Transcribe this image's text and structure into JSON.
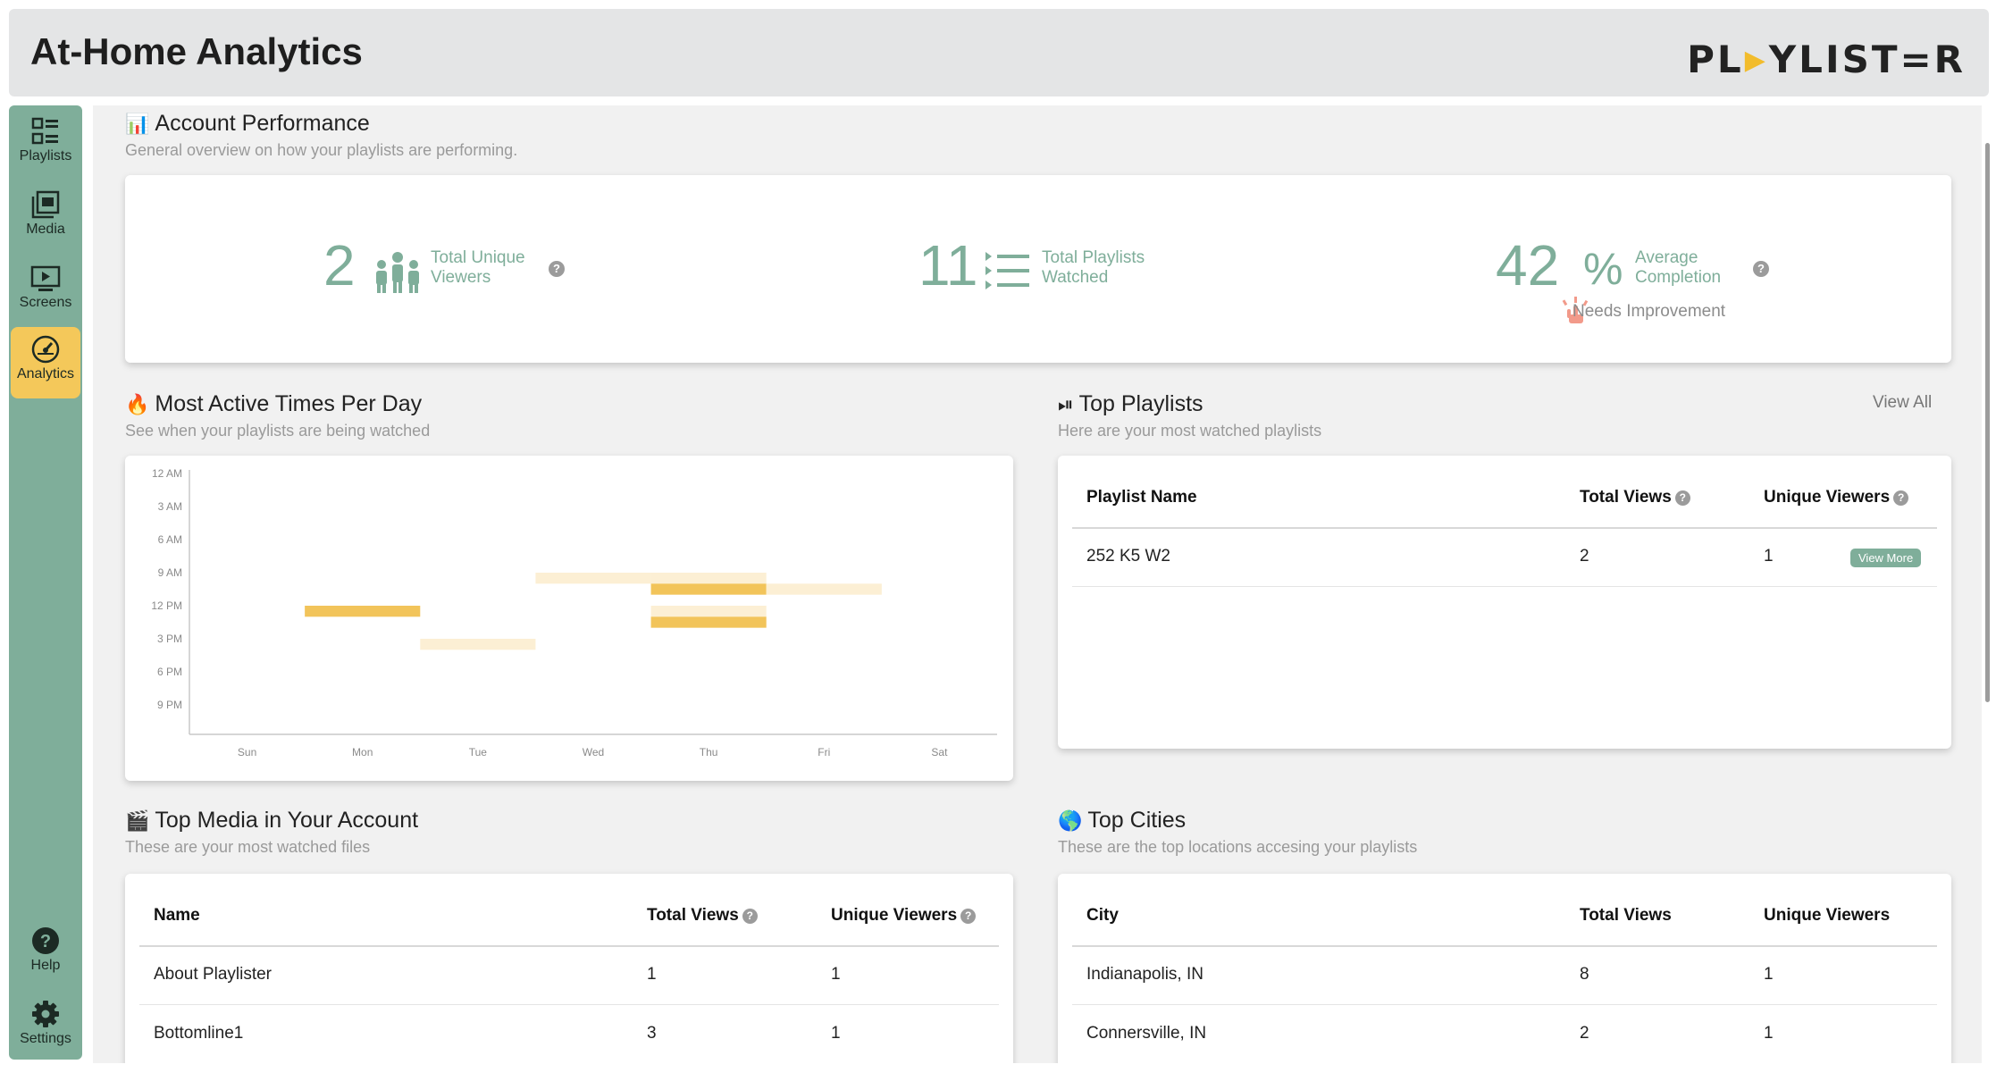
{
  "header": {
    "title": "At-Home Analytics",
    "logo_prefix": "PL",
    "logo_suffix": "YLIST=R"
  },
  "sidebar": {
    "items": [
      {
        "label": "Playlists",
        "icon": "playlists-icon"
      },
      {
        "label": "Media",
        "icon": "media-icon"
      },
      {
        "label": "Screens",
        "icon": "screens-icon"
      },
      {
        "label": "Analytics",
        "icon": "analytics-gauge-icon",
        "active": true
      },
      {
        "label": "Help",
        "icon": "help-icon"
      },
      {
        "label": "Settings",
        "icon": "gear-icon"
      }
    ]
  },
  "performance": {
    "title": "Account Performance",
    "subtitle": "General overview on how your playlists are performing.",
    "unique_viewers": {
      "value": "2",
      "label_1": "Total Unique",
      "label_2": "Viewers"
    },
    "playlists_watched": {
      "value": "11",
      "label_1": "Total Playlists",
      "label_2": "Watched"
    },
    "avg_completion": {
      "value": "42",
      "unit": "%",
      "label_1": "Average",
      "label_2": "Completion",
      "status": "Needs Improvement"
    }
  },
  "active_times": {
    "title": "Most Active Times Per Day",
    "subtitle": "See when your playlists are being watched"
  },
  "chart_data": {
    "type": "heatmap",
    "title": "",
    "categories": [
      "Sun",
      "Mon",
      "Tue",
      "Wed",
      "Thu",
      "Fri",
      "Sat"
    ],
    "y_ticks": [
      "12 AM",
      "3 AM",
      "6 AM",
      "9 AM",
      "12 PM",
      "3 PM",
      "6 PM",
      "9 PM"
    ],
    "cells": [
      {
        "day": "Mon",
        "hour": 12,
        "intensity": 1.0
      },
      {
        "day": "Tue",
        "hour": 15,
        "intensity": 0.3
      },
      {
        "day": "Wed",
        "hour": 9,
        "intensity": 0.3
      },
      {
        "day": "Thu",
        "hour": 9,
        "intensity": 0.3
      },
      {
        "day": "Thu",
        "hour": 10,
        "intensity": 1.0
      },
      {
        "day": "Thu",
        "hour": 12,
        "intensity": 0.3
      },
      {
        "day": "Thu",
        "hour": 13,
        "intensity": 1.0
      },
      {
        "day": "Fri",
        "hour": 10,
        "intensity": 0.3
      }
    ]
  },
  "top_playlists": {
    "title": "Top Playlists",
    "subtitle": "Here are your most watched playlists",
    "view_all": "View All",
    "columns": [
      "Playlist Name",
      "Total Views",
      "Unique Viewers"
    ],
    "rows": [
      {
        "name": "252 K5 W2",
        "views": "2",
        "viewers": "1",
        "action": "View More"
      }
    ]
  },
  "top_media": {
    "title": "Top Media in Your Account",
    "subtitle": "These are your most watched files",
    "columns": [
      "Name",
      "Total Views",
      "Unique Viewers"
    ],
    "rows": [
      {
        "name": "About Playlister",
        "views": "1",
        "viewers": "1"
      },
      {
        "name": "Bottomline1",
        "views": "3",
        "viewers": "1"
      }
    ]
  },
  "top_cities": {
    "title": "Top Cities",
    "subtitle": "These are the top locations accesing your playlists",
    "columns": [
      "City",
      "Total Views",
      "Unique Viewers"
    ],
    "rows": [
      {
        "city": "Indianapolis, IN",
        "views": "8",
        "viewers": "1"
      },
      {
        "city": "Connersville, IN",
        "views": "2",
        "viewers": "1"
      }
    ]
  },
  "colors": {
    "accent": "#7fae9a",
    "active_nav": "#f4c85a",
    "heat_high": "#f2c45a",
    "heat_low": "#fcefd4"
  }
}
